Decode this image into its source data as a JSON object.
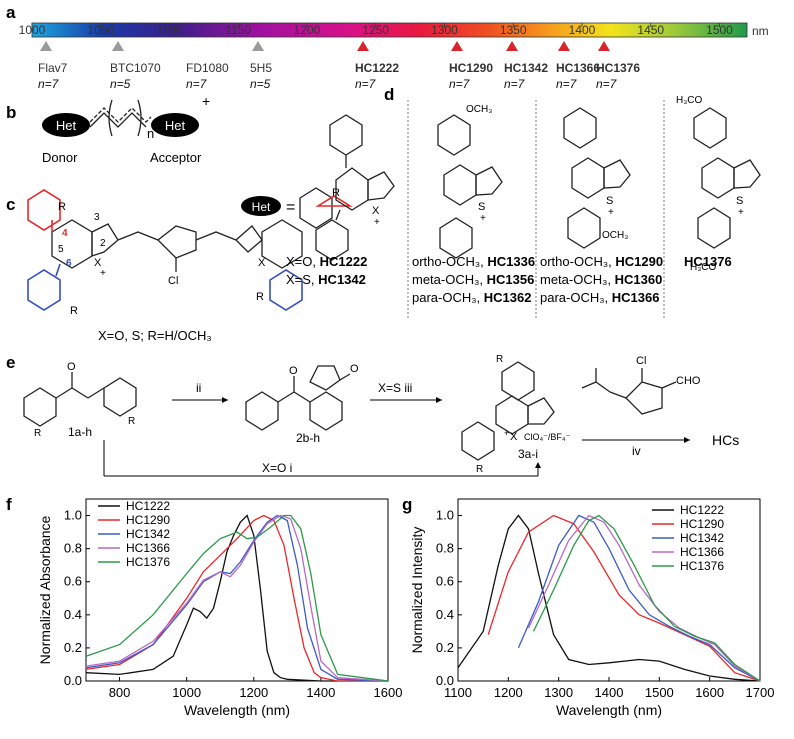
{
  "panel_labels": {
    "a": "a",
    "b": "b",
    "c": "c",
    "d": "d",
    "e": "e",
    "f": "f",
    "g": "g"
  },
  "spectrum": {
    "unit": "nm",
    "ticks": [
      "1000",
      "1050",
      "1100",
      "1150",
      "1200",
      "1250",
      "1300",
      "1350",
      "1400",
      "1450",
      "1500"
    ],
    "dyes": [
      {
        "name": "Flav7",
        "n": "n=7",
        "marker": "gray",
        "bold": false
      },
      {
        "name": "BTC1070",
        "n": "n=5",
        "marker": "gray",
        "bold": false
      },
      {
        "name": "FD1080",
        "n": "n=7",
        "marker": "none",
        "bold": false
      },
      {
        "name": "5H5",
        "n": "n=5",
        "marker": "gray",
        "bold": false
      },
      {
        "name": "HC1222",
        "n": "n=7",
        "marker": "red",
        "bold": true
      },
      {
        "name": "HC1290",
        "n": "n=7",
        "marker": "red",
        "bold": true
      },
      {
        "name": "HC1342",
        "n": "n=7",
        "marker": "red",
        "bold": true
      },
      {
        "name": "HC1366",
        "n": "n=7",
        "marker": "red",
        "bold": true
      },
      {
        "name": "HC1376",
        "n": "n=7",
        "marker": "red",
        "bold": true
      }
    ]
  },
  "panel_b": {
    "left": "Het",
    "right": "Het",
    "charge": "+",
    "n": "n",
    "donor": "Donor",
    "acceptor": "Acceptor"
  },
  "panel_c": {
    "caption": "X=O, S; R=H/OCH₃",
    "r": "R",
    "x": "X",
    "cl": "Cl",
    "plus": "+",
    "pos2": "2",
    "pos3": "3",
    "pos4": "4",
    "pos5": "5",
    "pos6": "6"
  },
  "panel_d": {
    "het": "Het",
    "eq": "=",
    "x": "X",
    "s": "S",
    "plus": "+",
    "och3": "OCH₃",
    "h3co": "H₃CO",
    "col1": [
      {
        "pre": "X=O, ",
        "bold": "HC1222"
      },
      {
        "pre": "X=S, ",
        "bold": "HC1342"
      }
    ],
    "col2": [
      {
        "pre": "ortho-OCH₃, ",
        "bold": "HC1336"
      },
      {
        "pre": "meta-OCH₃, ",
        "bold": "HC1356"
      },
      {
        "pre": "para-OCH₃, ",
        "bold": "HC1362"
      }
    ],
    "col3": [
      {
        "pre": "ortho-OCH₃, ",
        "bold": "HC1290"
      },
      {
        "pre": "meta-OCH₃, ",
        "bold": "HC1360"
      },
      {
        "pre": "para-OCH₃, ",
        "bold": "HC1366"
      }
    ],
    "col4": [
      {
        "pre": "",
        "bold": "HC1376"
      }
    ]
  },
  "panel_e": {
    "c1": "1a-h",
    "c2": "2b-h",
    "c3": "3a-i",
    "step_ii": "ii",
    "step_iii": "X=S  iii",
    "step_iv": "iv",
    "step_i": "X=O  i",
    "anion": "ClO₄⁻/BF₄⁻",
    "reagent_cl": "Cl",
    "reagent_cho": "CHO",
    "product": "HCs",
    "o": "O",
    "r": "R",
    "x": "X",
    "plus": "+"
  },
  "chart_data": [
    {
      "type": "line",
      "ylabel": "Normalized Absorbance",
      "xlabel": "Wavelength (nm)",
      "xlim": [
        700,
        1600
      ],
      "ylim": [
        0,
        1.1
      ],
      "xticks": [
        800,
        1000,
        1200,
        1400,
        1600
      ],
      "yticks": [
        0.0,
        0.2,
        0.4,
        0.6,
        0.8,
        1.0
      ],
      "legend": "top-left",
      "series": [
        {
          "name": "HC1222",
          "color": "#111111",
          "x": [
            700,
            800,
            900,
            960,
            1000,
            1020,
            1040,
            1060,
            1080,
            1100,
            1120,
            1140,
            1160,
            1180,
            1200,
            1220,
            1240,
            1260,
            1280,
            1300,
            1400,
            1600
          ],
          "y": [
            0.05,
            0.04,
            0.07,
            0.15,
            0.34,
            0.44,
            0.42,
            0.38,
            0.44,
            0.6,
            0.78,
            0.88,
            0.96,
            1.0,
            0.88,
            0.55,
            0.18,
            0.05,
            0.02,
            0.01,
            0.0,
            0.0
          ]
        },
        {
          "name": "HC1290",
          "color": "#e8282b",
          "x": [
            700,
            800,
            900,
            1000,
            1050,
            1100,
            1150,
            1200,
            1230,
            1260,
            1290,
            1320,
            1350,
            1380,
            1400,
            1450,
            1600
          ],
          "y": [
            0.07,
            0.1,
            0.22,
            0.5,
            0.66,
            0.76,
            0.86,
            0.97,
            1.0,
            0.97,
            0.82,
            0.5,
            0.2,
            0.05,
            0.02,
            0.0,
            0.0
          ]
        },
        {
          "name": "HC1342",
          "color": "#3b5bc7",
          "x": [
            700,
            800,
            900,
            1000,
            1050,
            1100,
            1130,
            1160,
            1200,
            1240,
            1270,
            1300,
            1330,
            1360,
            1400,
            1450,
            1600
          ],
          "y": [
            0.08,
            0.11,
            0.22,
            0.46,
            0.6,
            0.66,
            0.65,
            0.72,
            0.85,
            0.96,
            1.0,
            0.97,
            0.7,
            0.32,
            0.07,
            0.01,
            0.0
          ]
        },
        {
          "name": "HC1366",
          "color": "#b868c6",
          "x": [
            700,
            800,
            900,
            1000,
            1050,
            1100,
            1130,
            1160,
            1200,
            1240,
            1280,
            1310,
            1340,
            1370,
            1400,
            1450,
            1600
          ],
          "y": [
            0.09,
            0.12,
            0.24,
            0.47,
            0.61,
            0.66,
            0.63,
            0.7,
            0.84,
            0.95,
            1.0,
            0.98,
            0.8,
            0.45,
            0.12,
            0.02,
            0.0
          ]
        },
        {
          "name": "HC1376",
          "color": "#2a9a47",
          "x": [
            700,
            800,
            900,
            1000,
            1050,
            1100,
            1150,
            1180,
            1210,
            1250,
            1290,
            1310,
            1340,
            1370,
            1400,
            1450,
            1600
          ],
          "y": [
            0.15,
            0.22,
            0.4,
            0.65,
            0.77,
            0.86,
            0.9,
            0.86,
            0.87,
            0.93,
            1.0,
            1.0,
            0.92,
            0.65,
            0.28,
            0.04,
            0.0
          ]
        }
      ]
    },
    {
      "type": "line",
      "ylabel": "Normalized Intensity",
      "xlabel": "Wavelength (nm)",
      "xlim": [
        1100,
        1700
      ],
      "ylim": [
        0,
        1.1
      ],
      "xticks": [
        1100,
        1200,
        1300,
        1400,
        1500,
        1600,
        1700
      ],
      "yticks": [
        0.0,
        0.2,
        0.4,
        0.6,
        0.8,
        1.0
      ],
      "legend": "top-right",
      "series": [
        {
          "name": "HC1222",
          "color": "#111111",
          "x": [
            1100,
            1150,
            1180,
            1200,
            1220,
            1240,
            1260,
            1290,
            1320,
            1360,
            1400,
            1460,
            1500,
            1550,
            1600,
            1650,
            1700
          ],
          "y": [
            0.08,
            0.3,
            0.7,
            0.92,
            1.0,
            0.92,
            0.65,
            0.28,
            0.13,
            0.1,
            0.11,
            0.13,
            0.12,
            0.07,
            0.03,
            0.01,
            0.0
          ]
        },
        {
          "name": "HC1290",
          "color": "#e8282b",
          "x": [
            1160,
            1200,
            1240,
            1290,
            1330,
            1370,
            1420,
            1460,
            1500,
            1550,
            1600,
            1650,
            1700
          ],
          "y": [
            0.28,
            0.66,
            0.9,
            1.0,
            0.95,
            0.78,
            0.52,
            0.4,
            0.35,
            0.28,
            0.21,
            0.05,
            0.0
          ]
        },
        {
          "name": "HC1342",
          "color": "#3b5bc7",
          "x": [
            1220,
            1260,
            1300,
            1340,
            1370,
            1400,
            1440,
            1480,
            1520,
            1560,
            1600,
            1650,
            1700
          ],
          "y": [
            0.2,
            0.48,
            0.82,
            1.0,
            0.96,
            0.8,
            0.55,
            0.4,
            0.33,
            0.27,
            0.22,
            0.08,
            0.0
          ]
        },
        {
          "name": "HC1366",
          "color": "#b868c6",
          "x": [
            1240,
            1280,
            1320,
            1360,
            1390,
            1420,
            1460,
            1500,
            1540,
            1580,
            1610,
            1650,
            1700
          ],
          "y": [
            0.32,
            0.58,
            0.85,
            1.0,
            0.96,
            0.82,
            0.58,
            0.42,
            0.32,
            0.26,
            0.22,
            0.09,
            0.0
          ]
        },
        {
          "name": "HC1376",
          "color": "#2a9a47",
          "x": [
            1250,
            1290,
            1330,
            1360,
            1380,
            1410,
            1450,
            1490,
            1530,
            1570,
            1610,
            1650,
            1700
          ],
          "y": [
            0.3,
            0.55,
            0.82,
            0.97,
            1.0,
            0.92,
            0.7,
            0.46,
            0.33,
            0.27,
            0.23,
            0.1,
            0.0
          ]
        }
      ]
    }
  ]
}
